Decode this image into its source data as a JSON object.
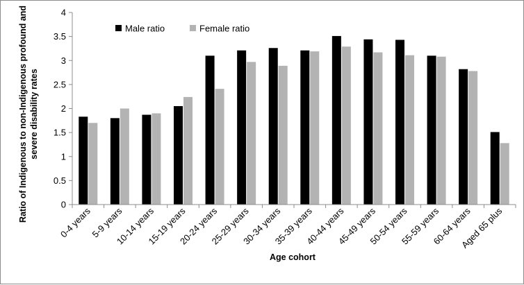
{
  "chart_data": {
    "type": "bar",
    "title": "",
    "xlabel": "Age cohort",
    "ylabel": "Ratio of Indigenous to non-Indigenous profound and severe disability rates",
    "ylim": [
      0,
      4
    ],
    "yticks": [
      "0",
      "0.5",
      "1",
      "1.5",
      "2",
      "2.5",
      "3",
      "3.5",
      "4"
    ],
    "grid": false,
    "legend_position": "top-left",
    "categories": [
      "0-4 years",
      "5-9 years",
      "10-14 years",
      "15-19 years",
      "20-24 years",
      "25-29 years",
      "30-34 years",
      "35-39 years",
      "40-44 years",
      "45-49 years",
      "50-54 years",
      "55-59 years",
      "60-64 years",
      "Aged 65 plus"
    ],
    "series": [
      {
        "name": "Male ratio",
        "color": "#000000",
        "values": [
          1.83,
          1.8,
          1.87,
          2.05,
          3.1,
          3.21,
          3.26,
          3.21,
          3.51,
          3.44,
          3.43,
          3.1,
          2.82,
          1.51
        ]
      },
      {
        "name": "Female ratio",
        "color": "#b3b3b3",
        "values": [
          1.7,
          2.0,
          1.9,
          2.24,
          2.41,
          2.97,
          2.89,
          3.19,
          3.29,
          3.17,
          3.11,
          3.08,
          2.78,
          1.28
        ]
      }
    ]
  }
}
